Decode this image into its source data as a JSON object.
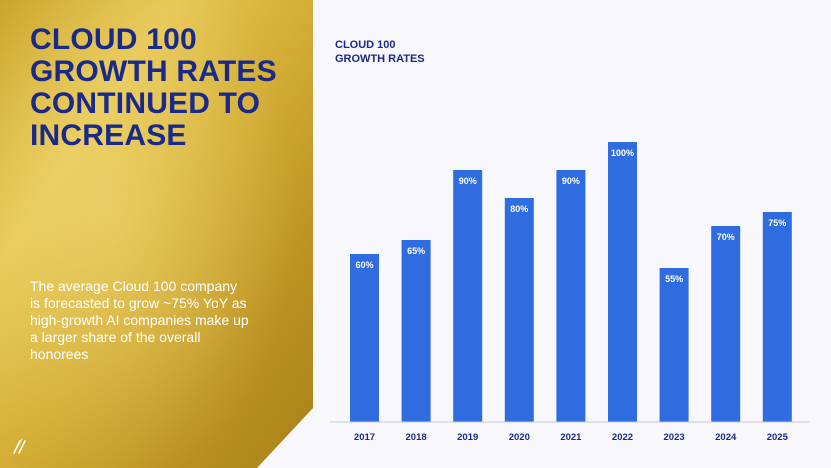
{
  "headline": {
    "line1": "CLOUD 100",
    "line2": "GROWTH RATES",
    "line3": "CONTINUED TO",
    "line4": "INCREASE"
  },
  "summary": {
    "line1": "The average Cloud 100 company",
    "line2": "is forecasted to grow ~75% YoY as",
    "line3": "high-growth AI companies make up",
    "line4": "a larger share of the overall",
    "line5": "honorees"
  },
  "chart_title": {
    "line1": "CLOUD 100",
    "line2": "GROWTH RATES"
  },
  "colors": {
    "accent_blue": "#2f6ce0",
    "headline_navy": "#1a2a8a",
    "gold": "#d8b33a",
    "background": "#f8f7fb"
  },
  "icons": {
    "logo": "double-slash-logo-icon"
  },
  "chart_data": {
    "type": "bar",
    "title": "CLOUD 100 GROWTH RATES",
    "categories": [
      "2017",
      "2018",
      "2019",
      "2020",
      "2021",
      "2022",
      "2023",
      "2024",
      "2025"
    ],
    "values": [
      60,
      65,
      90,
      80,
      90,
      100,
      55,
      70,
      75
    ],
    "value_labels": [
      "60%",
      "65%",
      "90%",
      "80%",
      "90%",
      "100%",
      "55%",
      "70%",
      "75%"
    ],
    "xlabel": "",
    "ylabel": "",
    "ylim": [
      0,
      100
    ],
    "grid": false,
    "legend": "none"
  }
}
